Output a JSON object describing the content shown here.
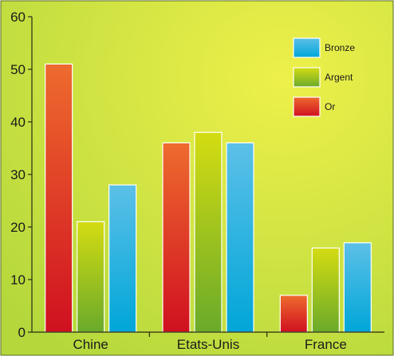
{
  "chart_data": {
    "type": "bar",
    "categories": [
      "Chine",
      "Etats-Unis",
      "France"
    ],
    "series": [
      {
        "name": "Or",
        "values": [
          51,
          36,
          7
        ],
        "color_top": "#ee6b2e",
        "color_bottom": "#d01020"
      },
      {
        "name": "Argent",
        "values": [
          21,
          38,
          16
        ],
        "color_top": "#d4dc12",
        "color_bottom": "#6aaa2a"
      },
      {
        "name": "Bronze",
        "values": [
          28,
          36,
          17
        ],
        "color_top": "#5cc0e8",
        "color_bottom": "#00a6d8"
      }
    ],
    "legend_order": [
      "Bronze",
      "Argent",
      "Or"
    ],
    "ylim": [
      0,
      60
    ],
    "yticks": [
      0,
      10,
      20,
      30,
      40,
      50,
      60
    ],
    "title": "",
    "xlabel": "",
    "ylabel": "",
    "grid": false,
    "legend_position": "top-right",
    "background_inner": "#eef04a",
    "background_outer": "#b4d83c"
  }
}
